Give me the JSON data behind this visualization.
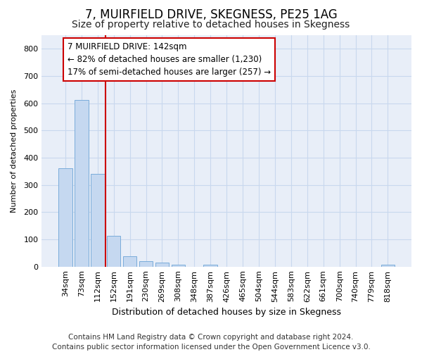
{
  "title": "7, MUIRFIELD DRIVE, SKEGNESS, PE25 1AG",
  "subtitle": "Size of property relative to detached houses in Skegness",
  "xlabel": "Distribution of detached houses by size in Skegness",
  "ylabel": "Number of detached properties",
  "categories": [
    "34sqm",
    "73sqm",
    "112sqm",
    "152sqm",
    "191sqm",
    "230sqm",
    "269sqm",
    "308sqm",
    "348sqm",
    "387sqm",
    "426sqm",
    "465sqm",
    "504sqm",
    "544sqm",
    "583sqm",
    "622sqm",
    "661sqm",
    "700sqm",
    "740sqm",
    "779sqm",
    "818sqm"
  ],
  "values": [
    360,
    612,
    340,
    113,
    38,
    19,
    15,
    8,
    0,
    8,
    0,
    0,
    0,
    0,
    0,
    0,
    0,
    0,
    0,
    0,
    6
  ],
  "bar_color": "#c5d8f0",
  "bar_edge_color": "#7aacda",
  "vline_color": "#cc0000",
  "annotation_text": "7 MUIRFIELD DRIVE: 142sqm\n← 82% of detached houses are smaller (1,230)\n17% of semi-detached houses are larger (257) →",
  "annotation_box_color": "#cc0000",
  "ylim": [
    0,
    850
  ],
  "yticks": [
    0,
    100,
    200,
    300,
    400,
    500,
    600,
    700,
    800
  ],
  "grid_color": "#c8d8ee",
  "bg_color": "#e8eef8",
  "footer": "Contains HM Land Registry data © Crown copyright and database right 2024.\nContains public sector information licensed under the Open Government Licence v3.0.",
  "title_fontsize": 12,
  "subtitle_fontsize": 10,
  "annotation_fontsize": 8.5,
  "footer_fontsize": 7.5,
  "ylabel_fontsize": 8,
  "xlabel_fontsize": 9,
  "ytick_fontsize": 8,
  "xtick_fontsize": 8
}
